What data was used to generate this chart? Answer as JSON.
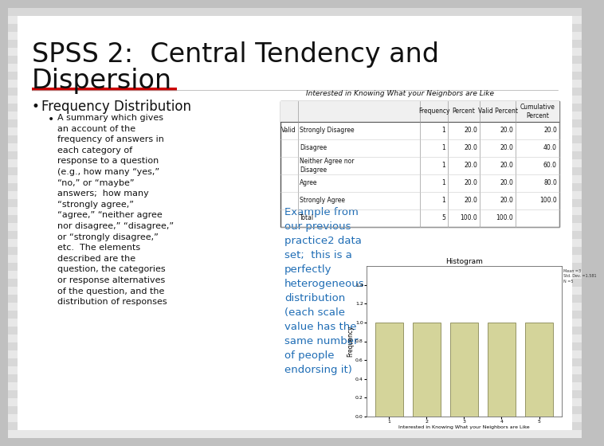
{
  "title_line1": "SPSS 2:  Central Tendency and",
  "title_line2": "Dispersion",
  "title_fontsize": 24,
  "bg_stripe1": "#e8e8e8",
  "bg_stripe2": "#d8d8d8",
  "white_bg": "#ffffff",
  "red_line_color": "#cc0000",
  "bullet1": "Frequency Distribution",
  "bullet1_fontsize": 12,
  "bullet2_fontsize": 8,
  "bullet2": "A summary which gives\nan account of the\nfrequency of answers in\neach category of\nresponse to a question\n(e.g., how many “yes,”\n“no,” or “maybe”\nanswers;  how many\n“strongly agree,”\n“agree,” “neither agree\nnor disagree,” “disagree,”\nor “strongly disagree,”\netc.  The elements\ndescribed are the\nquestion, the categories\nor response alternatives\nof the question, and the\ndistribution of responses",
  "table_title": "Interested in Knowing What your Neignbors are Like",
  "table_header_freq": "Frequency",
  "table_header_pct": "Percent",
  "table_header_vpct": "Valid Percent",
  "table_header_cpct": "Cumulative\nPercent",
  "table_rows": [
    [
      "Valid",
      "Strongly Disagree",
      "1",
      "20.0",
      "20.0",
      "20.0"
    ],
    [
      "",
      "Disagree",
      "1",
      "20.0",
      "20.0",
      "40.0"
    ],
    [
      "",
      "Neither Agree nor\nDisagree",
      "1",
      "20.0",
      "20.0",
      "60.0"
    ],
    [
      "",
      "Agree",
      "1",
      "20.0",
      "20.0",
      "80.0"
    ],
    [
      "",
      "Strongly Agree",
      "1",
      "20.0",
      "20.0",
      "100.0"
    ],
    [
      "",
      "Total",
      "5",
      "100.0",
      "100.0",
      ""
    ]
  ],
  "example_text_color": "#1f6db5",
  "example_text": "Example from\nour previous\npractice2 data\nset;  this is a\nperfectly\nheterogeneous\ndistribution\n(each scale\nvalue has the\nsame number\nof people\nendorsing it)",
  "hist_title": "Histogram",
  "hist_bar_color": "#d4d49a",
  "hist_bar_edge": "#888855",
  "hist_x_label": "Interested in Knowing What your Neighbors are Like",
  "hist_y_label": "Frequency",
  "hist_values": [
    1,
    1,
    1,
    1,
    1
  ],
  "hist_categories": [
    1,
    2,
    3,
    4,
    5
  ],
  "hist_stats": "Mean =3\nStd. Dev. =1.581\nN =5"
}
